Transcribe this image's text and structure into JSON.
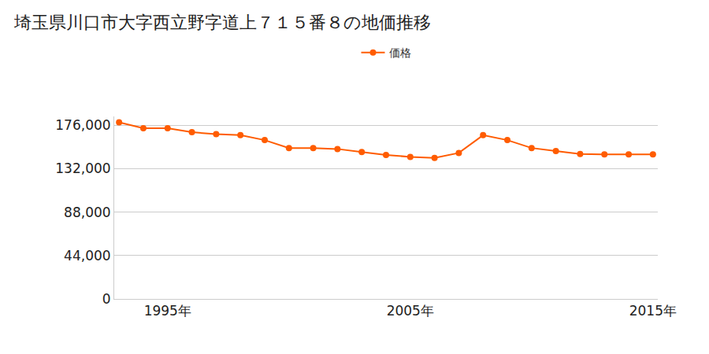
{
  "chart_data": {
    "type": "line",
    "title": "埼玉県川口市大字西立野字道上７１５番８の地価推移",
    "x": [
      1993,
      1994,
      1995,
      1996,
      1997,
      1998,
      1999,
      2000,
      2001,
      2002,
      2003,
      2004,
      2005,
      2006,
      2007,
      2008,
      2009,
      2010,
      2011,
      2012,
      2013,
      2014,
      2015
    ],
    "series": [
      {
        "name": "価格",
        "color": "#ff5c00",
        "marker": "circle",
        "values": [
          179000,
          173000,
          173000,
          169000,
          167000,
          166000,
          161000,
          153000,
          153000,
          152000,
          149000,
          146000,
          144000,
          143000,
          148000,
          166000,
          161000,
          153000,
          150000,
          147000,
          146500,
          146500,
          146500
        ]
      }
    ],
    "xlim": [
      1992.8,
      2015.2
    ],
    "xticks": [
      {
        "value": 1995,
        "label": "1995年"
      },
      {
        "value": 2005,
        "label": "2005年"
      },
      {
        "value": 2015,
        "label": "2015年"
      }
    ],
    "ylim": [
      0,
      185000
    ],
    "yticks": [
      0,
      {
        "value": 44000,
        "label": "44,000"
      },
      {
        "value": 88000,
        "label": "88,000"
      },
      {
        "value": 132000,
        "label": "132,000"
      },
      {
        "value": 176000,
        "label": "176,000"
      }
    ],
    "grid": true,
    "legend": "top"
  }
}
